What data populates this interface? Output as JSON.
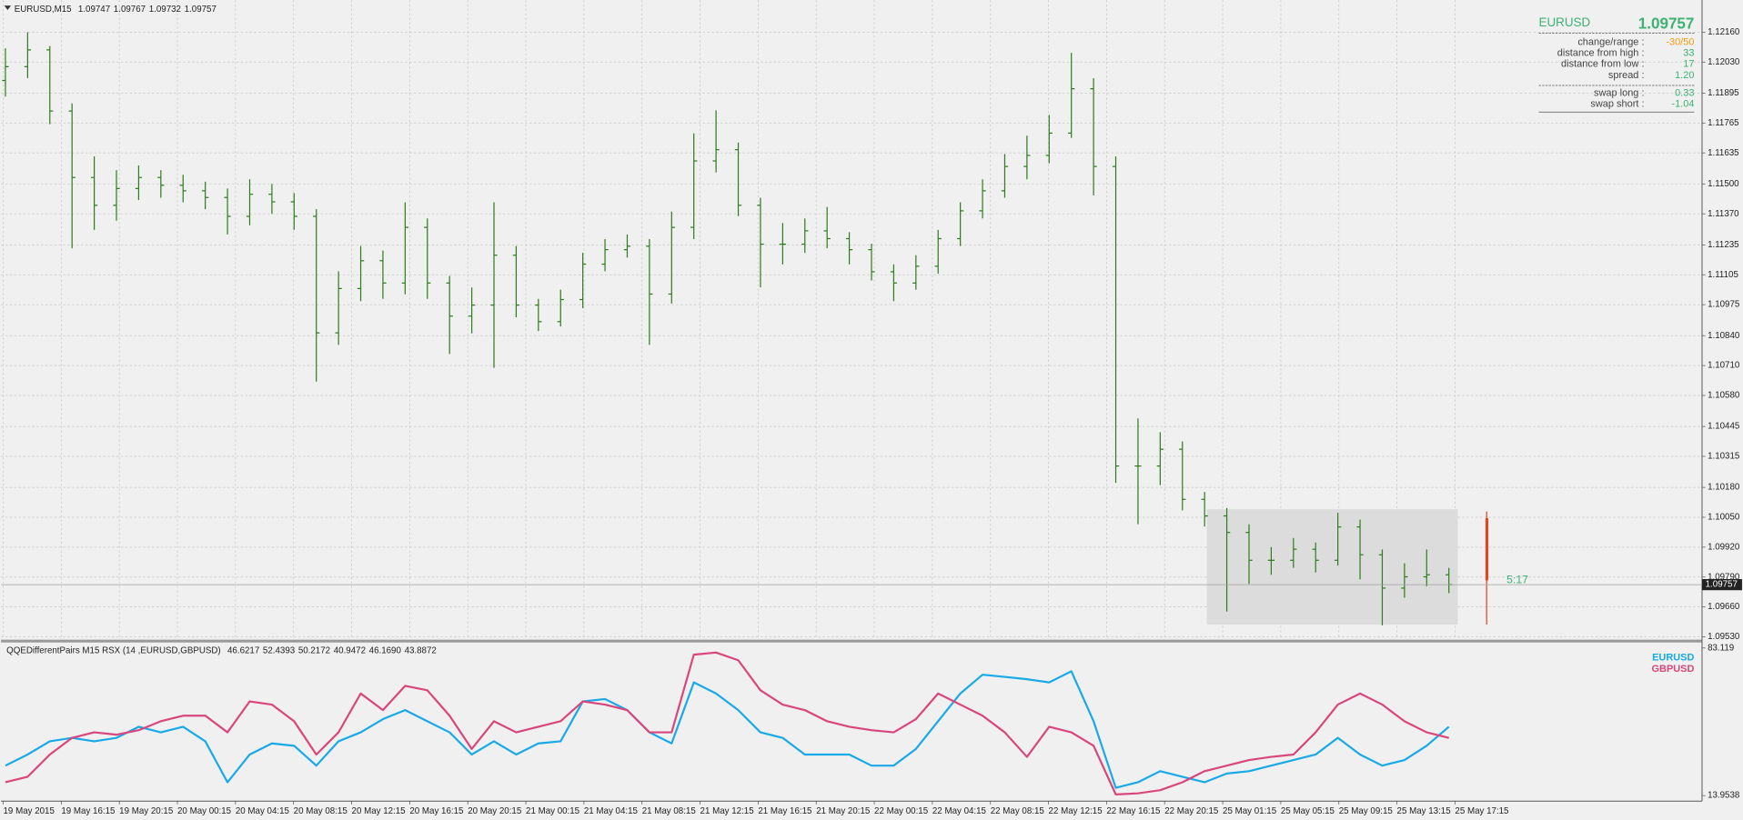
{
  "chart_data": [
    {
      "type": "ohlc",
      "title": "EURUSD,M15",
      "quote": [
        1.09747,
        1.09767,
        1.09732,
        1.09757
      ],
      "series": [
        {
          "color": "#2f7d1f",
          "open": [
            1.1195,
            1.1201,
            1.12083,
            1.11817,
            1.11528,
            1.11407,
            1.1148,
            1.11528,
            1.11494,
            1.1147,
            1.11441,
            1.11359,
            1.11455,
            1.11422,
            1.11359,
            1.10852,
            1.11045,
            1.11166,
            1.11069,
            1.11311,
            1.11069,
            1.10925,
            1.10973,
            1.1119,
            1.10973,
            1.10901,
            1.10997,
            1.11151,
            1.11214,
            1.11229,
            1.11021,
            1.11311,
            1.116,
            1.11649,
            1.11407,
            1.11238,
            1.11238,
            1.11296,
            1.11262,
            1.11214,
            1.11118,
            1.11069,
            1.11142,
            1.11262,
            1.11383,
            1.1147,
            1.11576,
            1.11624,
            1.11721,
            1.11914,
            1.11576,
            1.10273,
            1.10273,
            1.10346,
            1.10128,
            1.10056,
            1.09984,
            1.09863,
            1.09863,
            1.09911,
            1.09863,
            1.10008,
            1.09887,
            1.09742,
            1.09791,
            1.098
          ],
          "high": [
            1.1209,
            1.1216,
            1.121,
            1.1185,
            1.1162,
            1.1156,
            1.1158,
            1.1156,
            1.1154,
            1.1151,
            1.1148,
            1.1152,
            1.115,
            1.1146,
            1.1139,
            1.1112,
            1.1123,
            1.1121,
            1.1142,
            1.1135,
            1.111,
            1.1105,
            1.1142,
            1.1123,
            1.11,
            1.1104,
            1.112,
            1.1126,
            1.1128,
            1.1126,
            1.1138,
            1.1172,
            1.1182,
            1.1168,
            1.1144,
            1.1133,
            1.1135,
            1.114,
            1.1129,
            1.1124,
            1.1115,
            1.1119,
            1.113,
            1.1142,
            1.1152,
            1.1163,
            1.1171,
            1.118,
            1.1207,
            1.1196,
            1.1162,
            1.1048,
            1.1042,
            1.1038,
            1.1016,
            1.1009,
            1.1002,
            1.0992,
            1.0996,
            1.0994,
            1.1007,
            1.1004,
            1.0991,
            1.0985,
            1.0991,
            1.0983
          ],
          "low": [
            1.1188,
            1.1196,
            1.1176,
            1.1122,
            1.113,
            1.1134,
            1.1143,
            1.1144,
            1.1142,
            1.1139,
            1.1128,
            1.1132,
            1.1137,
            1.113,
            1.1064,
            1.108,
            1.1099,
            1.11,
            1.1102,
            1.11,
            1.1076,
            1.1085,
            1.107,
            1.1092,
            1.1086,
            1.1088,
            1.1096,
            1.1112,
            1.1118,
            1.108,
            1.1098,
            1.1126,
            1.1155,
            1.1136,
            1.1105,
            1.1115,
            1.112,
            1.1122,
            1.1115,
            1.1108,
            1.1099,
            1.1104,
            1.1111,
            1.1123,
            1.1135,
            1.1144,
            1.1152,
            1.1159,
            1.117,
            1.1145,
            1.102,
            1.1002,
            1.1019,
            1.1008,
            1.1001,
            1.0964,
            1.0976,
            1.098,
            1.0983,
            1.0981,
            1.0984,
            1.0978,
            1.0958,
            1.097,
            1.0975,
            1.0972
          ],
          "close": [
            1.1201,
            1.12083,
            1.11817,
            1.11528,
            1.11407,
            1.1148,
            1.11528,
            1.11494,
            1.1147,
            1.11441,
            1.11359,
            1.11455,
            1.11422,
            1.11359,
            1.10852,
            1.11045,
            1.11166,
            1.11069,
            1.11311,
            1.11069,
            1.10925,
            1.10973,
            1.1119,
            1.10973,
            1.10901,
            1.10997,
            1.11151,
            1.11214,
            1.11229,
            1.11021,
            1.11311,
            1.116,
            1.11649,
            1.11407,
            1.11238,
            1.11238,
            1.11296,
            1.11262,
            1.11214,
            1.11118,
            1.11069,
            1.11142,
            1.11262,
            1.11383,
            1.1147,
            1.11576,
            1.11624,
            1.11721,
            1.11914,
            1.11576,
            1.10273,
            1.10273,
            1.10346,
            1.10128,
            1.10056,
            1.09984,
            1.09863,
            1.09863,
            1.09911,
            1.09863,
            1.10008,
            1.09887,
            1.09742,
            1.09791,
            1.098,
            1.09757
          ]
        }
      ],
      "ylim": [
        1.0952,
        1.123
      ],
      "yticks": [
        {
          "value": 1.1216,
          "label": "1.12160"
        },
        {
          "value": 1.1203,
          "label": "1.12030"
        },
        {
          "value": 1.11895,
          "label": "1.11895"
        },
        {
          "value": 1.11765,
          "label": "1.11765"
        },
        {
          "value": 1.11635,
          "label": "1.11635"
        },
        {
          "value": 1.115,
          "label": "1.11500"
        },
        {
          "value": 1.1137,
          "label": "1.11370"
        },
        {
          "value": 1.11235,
          "label": "1.11235"
        },
        {
          "value": 1.11105,
          "label": "1.11105"
        },
        {
          "value": 1.10975,
          "label": "1.10975"
        },
        {
          "value": 1.1084,
          "label": "1.10840"
        },
        {
          "value": 1.1071,
          "label": "1.10710"
        },
        {
          "value": 1.1058,
          "label": "1.10580"
        },
        {
          "value": 1.10445,
          "label": "1.10445"
        },
        {
          "value": 1.10315,
          "label": "1.10315"
        },
        {
          "value": 1.1018,
          "label": "1.10180"
        },
        {
          "value": 1.1005,
          "label": "1.10050"
        },
        {
          "value": 1.0992,
          "label": "1.09920"
        },
        {
          "value": 1.0979,
          "label": "1.09790"
        },
        {
          "value": 1.0966,
          "label": "1.09660"
        },
        {
          "value": 1.0953,
          "label": "1.09530"
        }
      ],
      "grid": true,
      "range_box": {
        "high": 1.10085,
        "low": 1.09583,
        "color": "#dcdcdc"
      },
      "range_bar": {
        "high": 1.10075,
        "low": 1.09583,
        "color": "#e8431a"
      },
      "timer": "5:17"
    },
    {
      "type": "line",
      "title": "QQEDifferentPairs M15 RSX (14 ,EURUSD,GBPUSD)",
      "readings": [
        46.6217,
        52.4393,
        50.2172,
        40.9472,
        {
          "value": 46.169,
          "label": "46.1690"
        },
        43.8872
      ],
      "series": [
        {
          "name": "EURUSD",
          "color": "#18a9e6",
          "values": [
            28.0,
            33.2,
            39.4,
            41.0,
            39.4,
            41.0,
            46.2,
            43.6,
            46.2,
            39.4,
            20.2,
            33.2,
            38.4,
            37.3,
            28.0,
            39.4,
            43.6,
            49.8,
            54.0,
            48.8,
            43.6,
            33.2,
            39.4,
            33.2,
            38.4,
            39.4,
            58.1,
            59.2,
            54.0,
            43.6,
            38.4,
            67.0,
            61.8,
            54.0,
            43.6,
            41.0,
            33.2,
            33.2,
            33.2,
            28.0,
            28.0,
            35.8,
            48.8,
            61.8,
            70.6,
            69.6,
            68.5,
            67.0,
            72.2,
            48.8,
            17.6,
            20.2,
            25.4,
            22.8,
            20.2,
            24.3,
            25.4,
            28.0,
            30.6,
            33.2,
            41.0,
            33.2,
            28.0,
            30.6,
            37.3,
            46.2
          ]
        },
        {
          "name": "GBPUSD",
          "color": "#d9467c",
          "values": [
            20.2,
            22.8,
            33.2,
            41.0,
            43.6,
            42.5,
            44.6,
            48.8,
            51.4,
            51.4,
            43.6,
            58.1,
            56.6,
            48.8,
            33.2,
            43.6,
            61.8,
            54.0,
            65.4,
            63.3,
            51.4,
            35.8,
            48.8,
            43.6,
            46.2,
            48.8,
            58.1,
            56.6,
            54.0,
            43.6,
            43.6,
            80.0,
            81.0,
            77.4,
            63.3,
            56.6,
            54.0,
            48.8,
            46.2,
            44.6,
            43.6,
            49.8,
            61.8,
            56.6,
            51.4,
            43.6,
            32.1,
            46.2,
            43.6,
            37.3,
            14.5,
            15.0,
            16.5,
            20.2,
            25.4,
            28.0,
            30.6,
            32.1,
            33.2,
            43.6,
            56.6,
            61.8,
            56.6,
            48.8,
            43.6,
            41.0
          ]
        }
      ],
      "ylim": [
        13.9538,
        83.119
      ],
      "yticks": [
        13.9538,
        83.119
      ],
      "legend": "top-right",
      "x_labels": [
        "19 May 2015",
        "19 May 16:15",
        "19 May 20:15",
        "20 May 00:15",
        "20 May 04:15",
        "20 May 08:15",
        "20 May 12:15",
        "20 May 16:15",
        "20 May 20:15",
        "21 May 00:15",
        "21 May 04:15",
        "21 May 08:15",
        "21 May 12:15",
        "21 May 16:15",
        "21 May 20:15",
        "22 May 00:15",
        "22 May 04:15",
        "22 May 08:15",
        "22 May 12:15",
        "22 May 16:15",
        "22 May 20:15",
        "25 May 01:15",
        "25 May 05:15",
        "25 May 09:15",
        "25 May 13:15",
        "25 May 17:15"
      ]
    }
  ],
  "info_panel": {
    "symbol": "EURUSD",
    "price": 1.09757,
    "rows": [
      {
        "label": "change/range :",
        "value": "-30/50",
        "color": "#f39c12"
      },
      {
        "label": "distance from high :",
        "value": 33,
        "color": "#3cb371"
      },
      {
        "label": "distance from low :",
        "value": 17,
        "color": "#3cb371"
      },
      {
        "label": "spread :",
        "value": "1.20",
        "color": "#3cb371"
      },
      {
        "label": "swap long :",
        "value": 0.33,
        "color": "#3cb371"
      },
      {
        "label": "swap short :",
        "value": -1.04,
        "color": "#3cb371"
      }
    ]
  }
}
